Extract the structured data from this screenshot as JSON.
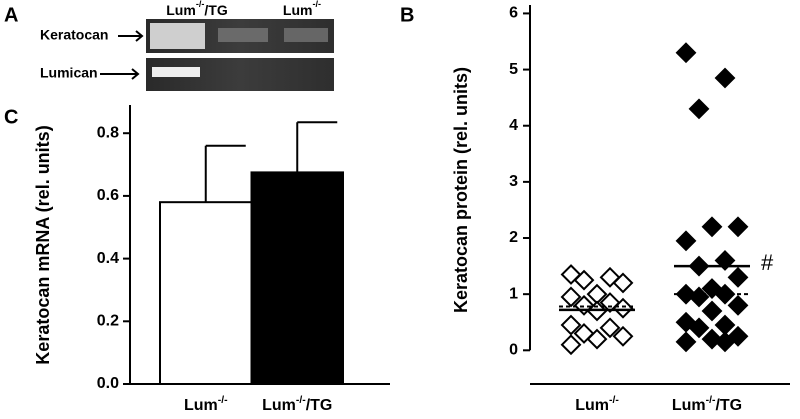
{
  "panel_a": {
    "panel_label": "A",
    "rows": [
      "Keratocan",
      "Lumican"
    ],
    "columns": [
      {
        "base": "Lum",
        "sup": "-/-",
        "suffix": "/TG"
      },
      {
        "base": "Lum",
        "sup": "-/-"
      }
    ]
  },
  "chart_data": [
    {
      "type": "bar",
      "panel_label": "C",
      "y_label": "Keratocan mRNA (rel. units)",
      "categories": [
        {
          "base": "Lum",
          "sup": "-/-"
        },
        {
          "base": "Lum",
          "sup": "-/-",
          "suffix": "/TG"
        }
      ],
      "values": [
        0.58,
        0.675
      ],
      "errors": [
        0.18,
        0.16
      ],
      "colors": [
        "#ffffff",
        "#000000"
      ],
      "ylim": [
        0,
        0.89
      ],
      "yticks": [
        {
          "value": 0,
          "label": "0.0"
        },
        0.2,
        0.4,
        0.6,
        0.8
      ]
    },
    {
      "type": "scatter",
      "panel_label": "B",
      "y_label": "Keratocan protein (rel. units)",
      "categories": [
        {
          "base": "Lum",
          "sup": "-/-"
        },
        {
          "base": "Lum",
          "sup": "-/-",
          "suffix": "/TG"
        }
      ],
      "groups": [
        {
          "marker": "open",
          "mean": 0.72,
          "median": 0.78,
          "values": [
            1.35,
            1.3,
            1.25,
            1.2,
            1.0,
            0.95,
            0.85,
            0.8,
            0.75,
            0.7,
            0.45,
            0.4,
            0.3,
            0.25,
            0.2,
            0.1
          ]
        },
        {
          "marker": "filled",
          "mean": 1.5,
          "median": 1.0,
          "values": [
            5.3,
            4.85,
            4.3,
            2.2,
            2.2,
            1.95,
            1.6,
            1.5,
            1.3,
            1.1,
            1.0,
            1.0,
            0.95,
            0.8,
            0.7,
            0.5,
            0.45,
            0.4,
            0.25,
            0.2,
            0.15,
            0.15
          ]
        }
      ],
      "annotation": "#",
      "ylim": [
        -0.6,
        6.15
      ],
      "yticks": [
        0,
        1,
        2,
        3,
        4,
        5,
        6
      ]
    }
  ]
}
